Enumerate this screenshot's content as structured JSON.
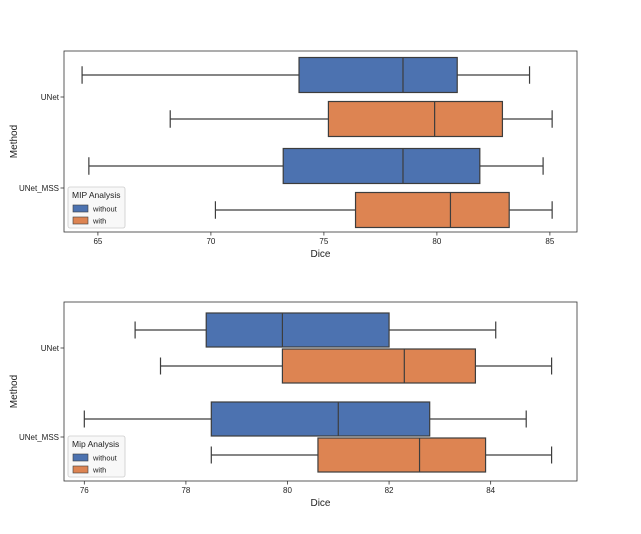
{
  "chart_data": [
    {
      "type": "boxplot",
      "orientation": "horizontal",
      "xlabel": "Dice",
      "ylabel": "Method",
      "xlim": [
        63.5,
        86.2
      ],
      "xticks": [
        65,
        70,
        75,
        80,
        85
      ],
      "categories": [
        "UNet",
        "UNet_MSS"
      ],
      "legend": {
        "title": "MIP Analysis",
        "placement": "lower-left"
      },
      "series": [
        {
          "name": "without",
          "color": "#4c72b0",
          "boxes": [
            {
              "category": "UNet",
              "whisker_low": 64.3,
              "q1": 73.9,
              "median": 78.5,
              "q3": 80.9,
              "whisker_high": 84.1
            },
            {
              "category": "UNet_MSS",
              "whisker_low": 64.6,
              "q1": 73.2,
              "median": 78.5,
              "q3": 81.9,
              "whisker_high": 84.7
            }
          ]
        },
        {
          "name": "with",
          "color": "#dd8452",
          "boxes": [
            {
              "category": "UNet",
              "whisker_low": 68.2,
              "q1": 75.2,
              "median": 79.9,
              "q3": 82.9,
              "whisker_high": 85.1
            },
            {
              "category": "UNet_MSS",
              "whisker_low": 70.2,
              "q1": 76.4,
              "median": 80.6,
              "q3": 83.2,
              "whisker_high": 85.1
            }
          ]
        }
      ]
    },
    {
      "type": "boxplot",
      "orientation": "horizontal",
      "xlabel": "Dice",
      "ylabel": "Method",
      "xlim": [
        75.6,
        85.7
      ],
      "xticks": [
        76,
        78,
        80,
        82,
        84
      ],
      "categories": [
        "UNet",
        "UNet_MSS"
      ],
      "legend": {
        "title": "Mip Analysis",
        "placement": "lower-left"
      },
      "series": [
        {
          "name": "without",
          "color": "#4c72b0",
          "boxes": [
            {
              "category": "UNet",
              "whisker_low": 77.0,
              "q1": 78.4,
              "median": 79.9,
              "q3": 82.0,
              "whisker_high": 84.1
            },
            {
              "category": "UNet_MSS",
              "whisker_low": 76.0,
              "q1": 78.5,
              "median": 81.0,
              "q3": 82.8,
              "whisker_high": 84.7
            }
          ]
        },
        {
          "name": "with",
          "color": "#dd8452",
          "boxes": [
            {
              "category": "UNet",
              "whisker_low": 77.5,
              "q1": 79.9,
              "median": 82.3,
              "q3": 83.7,
              "whisker_high": 85.2
            },
            {
              "category": "UNet_MSS",
              "whisker_low": 78.5,
              "q1": 80.6,
              "median": 82.6,
              "q3": 83.9,
              "whisker_high": 85.2
            }
          ]
        }
      ]
    }
  ]
}
